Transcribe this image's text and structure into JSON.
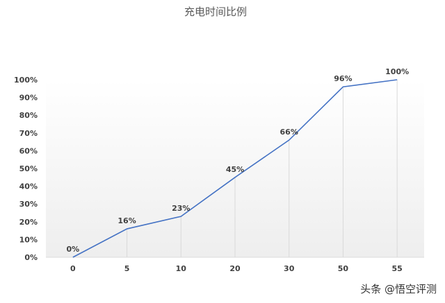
{
  "chart_data": {
    "type": "line",
    "title": "充电时间比例",
    "categories": [
      "0",
      "5",
      "10",
      "20",
      "30",
      "50",
      "55"
    ],
    "series": [
      {
        "values": [
          0,
          16,
          23,
          45,
          66,
          96,
          100
        ]
      }
    ],
    "data_labels": [
      "0%",
      "16%",
      "23%",
      "45%",
      "66%",
      "96%",
      "100%"
    ],
    "y_ticks": [
      "0%",
      "10%",
      "20%",
      "30%",
      "40%",
      "50%",
      "60%",
      "70%",
      "80%",
      "90%",
      "100%"
    ],
    "ylim": [
      0,
      100
    ],
    "xlabel": "",
    "ylabel": "",
    "grid": false,
    "drop_lines": true,
    "legend": "none",
    "colors": {
      "line": "#4472C4",
      "drop_line": "#D9D9D9",
      "axis": "#D9D9D9"
    }
  },
  "watermark": "头条 @悟空评测"
}
